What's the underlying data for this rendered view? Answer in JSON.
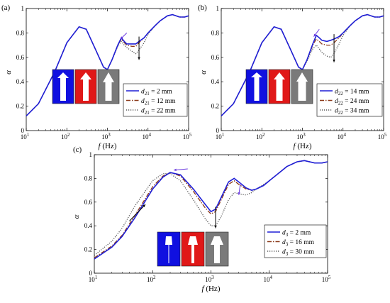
{
  "chart_data": [
    {
      "id": "a",
      "type": "line",
      "panel_label": "(a)",
      "xlabel": "f (Hz)",
      "ylabel": "α",
      "xscale": "log",
      "xlim": [
        10,
        100000
      ],
      "ylim": [
        0,
        1
      ],
      "xticks": [
        "10^1",
        "10^2",
        "10^3",
        "10^4",
        "10^5"
      ],
      "yticks": [
        "0",
        "0.2",
        "0.4",
        "0.6",
        "0.8",
        "1"
      ],
      "legend_position": "bottom-right",
      "annotations": [
        "arrow-left near 2.5 kHz peak",
        "arrow-down near 6 kHz dip"
      ],
      "series": [
        {
          "name": "d21 = 2 mm",
          "label_base": "d",
          "label_sub": "21",
          "label_rest": " = 2 mm",
          "color": "#1f1fd6",
          "dash": "solid",
          "x": [
            10,
            20,
            50,
            100,
            200,
            300,
            500,
            800,
            1000,
            1300,
            1800,
            2200,
            2600,
            3000,
            4000,
            5000,
            6000,
            8000,
            10000,
            15000,
            20000,
            30000,
            40000,
            60000,
            80000,
            100000
          ],
          "y": [
            0.12,
            0.22,
            0.48,
            0.72,
            0.85,
            0.83,
            0.67,
            0.52,
            0.5,
            0.58,
            0.7,
            0.76,
            0.73,
            0.71,
            0.71,
            0.71,
            0.73,
            0.76,
            0.8,
            0.86,
            0.9,
            0.94,
            0.95,
            0.93,
            0.93,
            0.94
          ]
        },
        {
          "name": "d21 = 12 mm",
          "label_base": "d",
          "label_sub": "21",
          "label_rest": " = 12 mm",
          "color": "#8b3a1a",
          "dash": "dashdot",
          "x": [
            10,
            20,
            50,
            100,
            200,
            300,
            500,
            800,
            1000,
            1300,
            1800,
            2200,
            2600,
            3000,
            4000,
            5000,
            6000,
            8000,
            10000,
            15000,
            20000,
            30000,
            40000,
            60000,
            80000,
            100000
          ],
          "y": [
            0.12,
            0.22,
            0.48,
            0.72,
            0.85,
            0.83,
            0.67,
            0.52,
            0.5,
            0.58,
            0.7,
            0.75,
            0.72,
            0.7,
            0.69,
            0.69,
            0.72,
            0.76,
            0.8,
            0.86,
            0.9,
            0.94,
            0.95,
            0.93,
            0.93,
            0.94
          ]
        },
        {
          "name": "d21 = 22 mm",
          "label_base": "d",
          "label_sub": "21",
          "label_rest": " = 22 mm",
          "color": "#555555",
          "dash": "dotted",
          "x": [
            10,
            20,
            50,
            100,
            200,
            300,
            500,
            800,
            1000,
            1300,
            1800,
            2200,
            2600,
            3000,
            4000,
            5000,
            6000,
            8000,
            10000,
            15000,
            20000,
            30000,
            40000,
            60000,
            80000,
            100000
          ],
          "y": [
            0.12,
            0.22,
            0.48,
            0.72,
            0.85,
            0.83,
            0.67,
            0.52,
            0.5,
            0.58,
            0.69,
            0.73,
            0.7,
            0.68,
            0.65,
            0.63,
            0.66,
            0.72,
            0.79,
            0.86,
            0.9,
            0.94,
            0.95,
            0.93,
            0.93,
            0.94
          ]
        }
      ]
    },
    {
      "id": "b",
      "type": "line",
      "panel_label": "(b)",
      "xlabel": "f (Hz)",
      "ylabel": "α",
      "xscale": "log",
      "xlim": [
        10,
        100000
      ],
      "ylim": [
        0,
        1
      ],
      "xticks": [
        "10^1",
        "10^2",
        "10^3",
        "10^4",
        "10^5"
      ],
      "yticks": [
        "0",
        "0.2",
        "0.4",
        "0.6",
        "0.8",
        "1"
      ],
      "legend_position": "bottom-right",
      "annotations": [
        "arrow-left near 2.5 kHz peak",
        "arrow-down near 6 kHz dip"
      ],
      "series": [
        {
          "name": "d22 = 14 mm",
          "label_base": "d",
          "label_sub": "22",
          "label_rest": " = 14 mm",
          "color": "#1f1fd6",
          "dash": "solid",
          "x": [
            10,
            20,
            50,
            100,
            200,
            300,
            500,
            800,
            1000,
            1300,
            1800,
            2200,
            2600,
            3000,
            4000,
            5000,
            6000,
            8000,
            10000,
            15000,
            20000,
            30000,
            40000,
            60000,
            80000,
            100000
          ],
          "y": [
            0.12,
            0.22,
            0.48,
            0.72,
            0.85,
            0.83,
            0.67,
            0.52,
            0.5,
            0.58,
            0.71,
            0.78,
            0.76,
            0.74,
            0.73,
            0.74,
            0.75,
            0.77,
            0.8,
            0.86,
            0.9,
            0.94,
            0.95,
            0.93,
            0.93,
            0.94
          ]
        },
        {
          "name": "d22 = 24 mm",
          "label_base": "d",
          "label_sub": "22",
          "label_rest": " = 24 mm",
          "color": "#8b3a1a",
          "dash": "dashdot",
          "x": [
            10,
            20,
            50,
            100,
            200,
            300,
            500,
            800,
            1000,
            1300,
            1800,
            2200,
            2600,
            3000,
            4000,
            5000,
            6000,
            8000,
            10000,
            15000,
            20000,
            30000,
            40000,
            60000,
            80000,
            100000
          ],
          "y": [
            0.12,
            0.22,
            0.48,
            0.72,
            0.85,
            0.83,
            0.67,
            0.52,
            0.5,
            0.58,
            0.7,
            0.75,
            0.73,
            0.71,
            0.7,
            0.7,
            0.72,
            0.76,
            0.8,
            0.86,
            0.9,
            0.94,
            0.95,
            0.93,
            0.93,
            0.94
          ]
        },
        {
          "name": "d22 = 34 mm",
          "label_base": "d",
          "label_sub": "22",
          "label_rest": " = 34 mm",
          "color": "#555555",
          "dash": "dotted",
          "x": [
            10,
            20,
            50,
            100,
            200,
            300,
            500,
            800,
            1000,
            1300,
            1800,
            2200,
            2600,
            3000,
            4000,
            5000,
            6000,
            8000,
            10000,
            15000,
            20000,
            30000,
            40000,
            60000,
            80000,
            100000
          ],
          "y": [
            0.12,
            0.22,
            0.48,
            0.72,
            0.85,
            0.83,
            0.67,
            0.52,
            0.5,
            0.57,
            0.67,
            0.7,
            0.67,
            0.64,
            0.61,
            0.6,
            0.63,
            0.71,
            0.78,
            0.86,
            0.9,
            0.94,
            0.95,
            0.93,
            0.93,
            0.94
          ]
        }
      ]
    },
    {
      "id": "c",
      "type": "line",
      "panel_label": "(c)",
      "xlabel": "f (Hz)",
      "ylabel": "α",
      "xscale": "log",
      "xlim": [
        10,
        100000
      ],
      "ylim": [
        0,
        1
      ],
      "xticks": [
        "10^1",
        "10^2",
        "10^3",
        "10^4",
        "10^5"
      ],
      "yticks": [
        "0",
        "0.2",
        "0.4",
        "0.6",
        "0.8",
        "1"
      ],
      "legend_position": "bottom-right",
      "annotations": [
        "arrow-left near 200 Hz peak",
        "arrow-up-right near 50 Hz",
        "arrow-down near 1.2 kHz dip",
        "arrow-down near 2.5 kHz peak"
      ],
      "series": [
        {
          "name": "d3 = 2 mm",
          "label_base": "d",
          "label_sub": "3",
          "label_rest": " = 2 mm",
          "color": "#1f1fd6",
          "dash": "solid",
          "x": [
            10,
            20,
            30,
            50,
            100,
            150,
            200,
            300,
            500,
            800,
            1000,
            1200,
            1500,
            2000,
            2500,
            3000,
            4000,
            5000,
            6000,
            8000,
            10000,
            15000,
            20000,
            30000,
            40000,
            60000,
            80000,
            100000
          ],
          "y": [
            0.12,
            0.22,
            0.31,
            0.47,
            0.71,
            0.81,
            0.85,
            0.83,
            0.71,
            0.58,
            0.52,
            0.54,
            0.64,
            0.77,
            0.8,
            0.77,
            0.72,
            0.7,
            0.71,
            0.74,
            0.78,
            0.85,
            0.9,
            0.94,
            0.95,
            0.93,
            0.93,
            0.94
          ]
        },
        {
          "name": "d3 = 16 mm",
          "label_base": "d",
          "label_sub": "3",
          "label_rest": " = 16 mm",
          "color": "#8b3a1a",
          "dash": "dashdot",
          "x": [
            10,
            20,
            30,
            50,
            100,
            150,
            200,
            300,
            500,
            800,
            1000,
            1200,
            1500,
            2000,
            2500,
            3000,
            4000,
            5000,
            6000,
            8000,
            10000,
            15000,
            20000,
            30000,
            40000,
            60000,
            80000,
            100000
          ],
          "y": [
            0.13,
            0.23,
            0.32,
            0.49,
            0.73,
            0.82,
            0.85,
            0.82,
            0.69,
            0.55,
            0.5,
            0.52,
            0.62,
            0.75,
            0.78,
            0.75,
            0.71,
            0.7,
            0.71,
            0.74,
            0.78,
            0.85,
            0.9,
            0.94,
            0.95,
            0.93,
            0.93,
            0.94
          ]
        },
        {
          "name": "d3 = 30 mm",
          "label_base": "d",
          "label_sub": "3",
          "label_rest": " = 30 mm",
          "color": "#555555",
          "dash": "dotted",
          "x": [
            10,
            20,
            30,
            50,
            100,
            150,
            200,
            300,
            500,
            800,
            1000,
            1200,
            1500,
            2000,
            2500,
            3000,
            4000,
            5000,
            6000,
            8000,
            10000,
            15000,
            20000,
            30000,
            40000,
            60000,
            80000,
            100000
          ],
          "y": [
            0.15,
            0.27,
            0.38,
            0.57,
            0.78,
            0.84,
            0.84,
            0.78,
            0.62,
            0.46,
            0.4,
            0.4,
            0.48,
            0.62,
            0.68,
            0.67,
            0.66,
            0.68,
            0.71,
            0.75,
            0.78,
            0.85,
            0.9,
            0.94,
            0.95,
            0.93,
            0.93,
            0.94
          ]
        }
      ]
    }
  ]
}
